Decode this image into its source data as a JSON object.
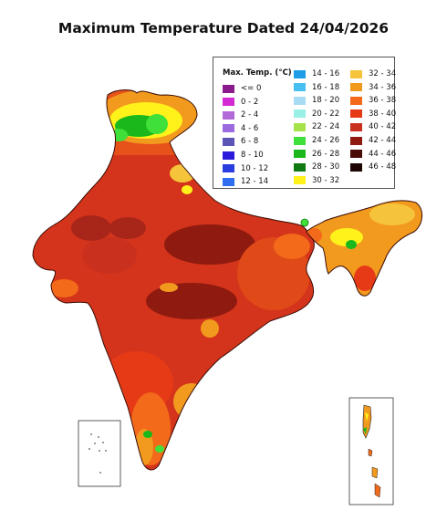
{
  "title": "Maximum Temperature Dated 24/04/2026",
  "legend": {
    "title": "Max. Temp. (°C)",
    "columns": [
      [
        {
          "label": "<= 0",
          "color": "#8b1a8b"
        },
        {
          "label": "0 - 2",
          "color": "#d42ad4"
        },
        {
          "label": "2 - 4",
          "color": "#b36ad9"
        },
        {
          "label": "4 - 6",
          "color": "#9b6ae0"
        },
        {
          "label": "6 - 8",
          "color": "#5a55b5"
        },
        {
          "label": "8 - 10",
          "color": "#2b1adb"
        },
        {
          "label": "10 - 12",
          "color": "#2a3ee0"
        },
        {
          "label": "12 - 14",
          "color": "#2f6ef0"
        }
      ],
      [
        {
          "label": "14 - 16",
          "color": "#1e9de6"
        },
        {
          "label": "16 - 18",
          "color": "#47bff0"
        },
        {
          "label": "18 - 20",
          "color": "#a8dcf5"
        },
        {
          "label": "20 - 22",
          "color": "#9af0e6"
        },
        {
          "label": "22 - 24",
          "color": "#a6e34a"
        },
        {
          "label": "24 - 26",
          "color": "#3fe03a"
        },
        {
          "label": "26 - 28",
          "color": "#1ab81a"
        },
        {
          "label": "28 - 30",
          "color": "#0f7a12"
        },
        {
          "label": "30 - 32",
          "color": "#fff21a"
        }
      ],
      [
        {
          "label": "32 - 34",
          "color": "#f5c43a"
        },
        {
          "label": "34 - 36",
          "color": "#f29a1e"
        },
        {
          "label": "36 - 38",
          "color": "#f26a1a"
        },
        {
          "label": "38 - 40",
          "color": "#e63a17"
        },
        {
          "label": "40 - 42",
          "color": "#c9301d"
        },
        {
          "label": "42 - 44",
          "color": "#8e1a10"
        },
        {
          "label": "44 - 46",
          "color": "#4a0c08"
        },
        {
          "label": "46 - 48",
          "color": "#1c0503"
        }
      ]
    ]
  }
}
